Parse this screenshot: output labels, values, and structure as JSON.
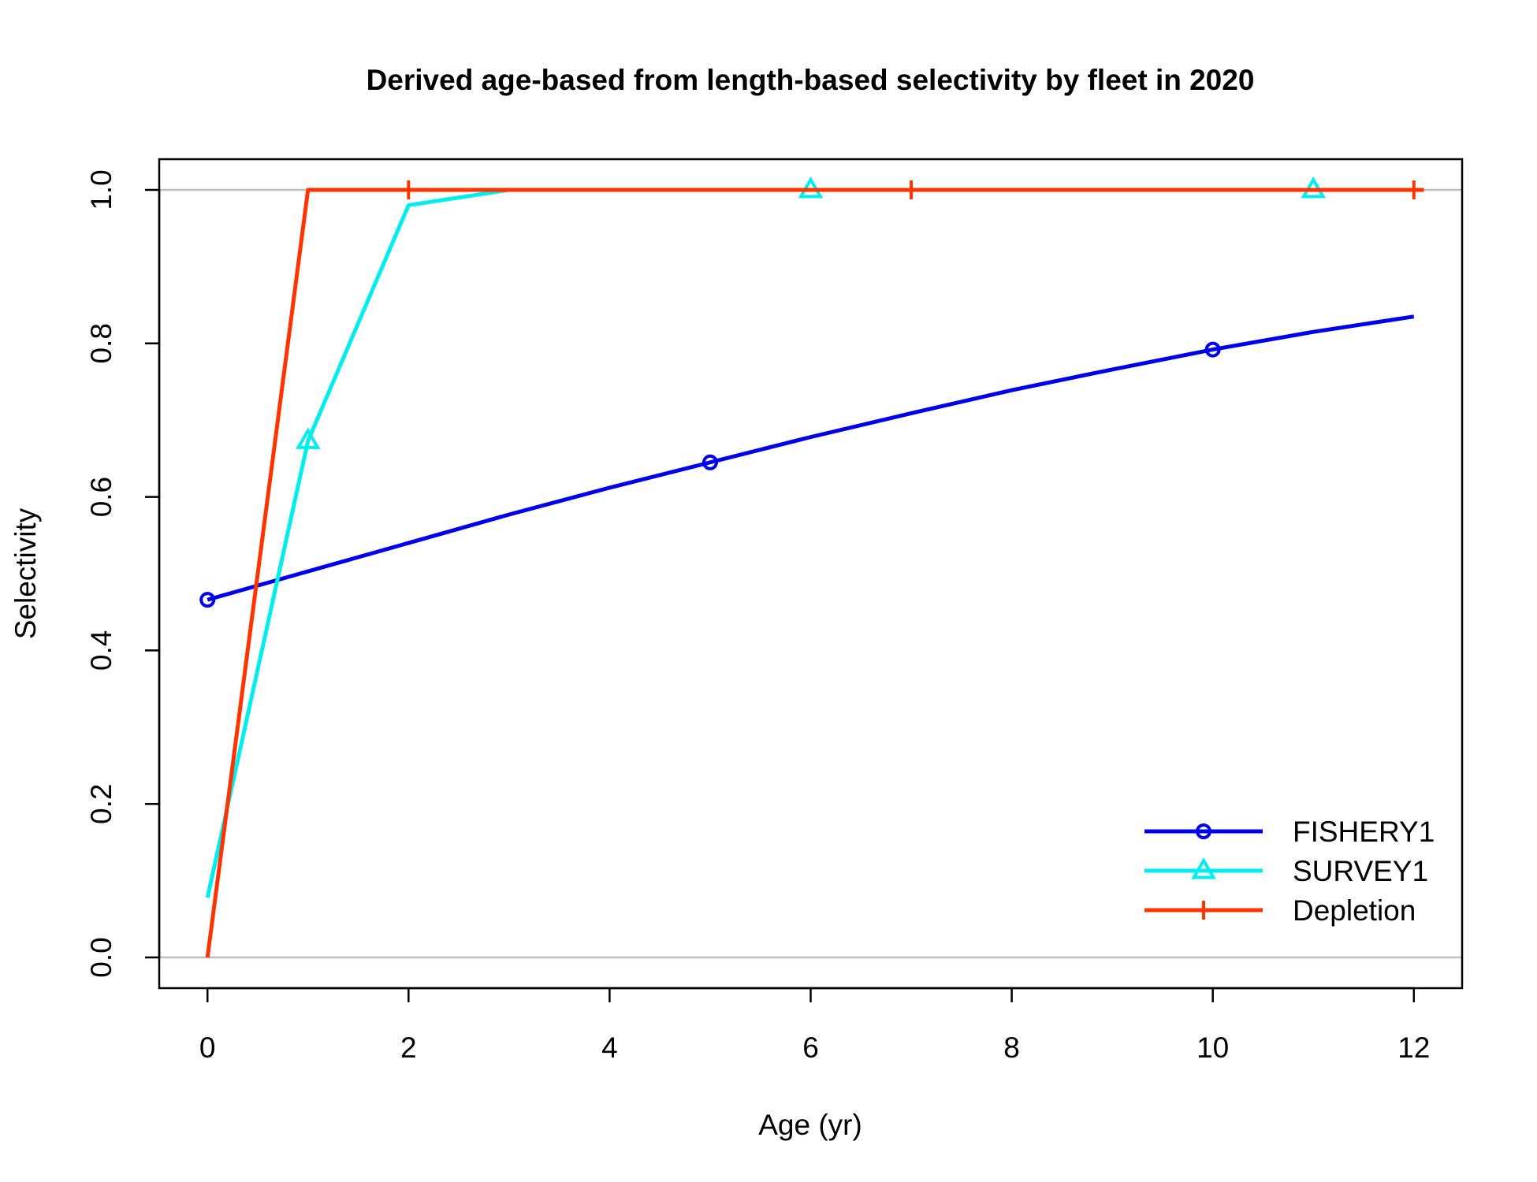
{
  "chart_data": {
    "type": "line",
    "title": "Derived age-based from length-based selectivity by fleet in 2020",
    "xlabel": "Age (yr)",
    "ylabel": "Selectivity",
    "xlim": [
      -0.48,
      12.48
    ],
    "ylim": [
      -0.04,
      1.04
    ],
    "xticks": [
      0,
      2,
      4,
      6,
      8,
      10,
      12
    ],
    "yticks": [
      0.0,
      0.2,
      0.4,
      0.6,
      0.8,
      1.0
    ],
    "xtick_labels": [
      "0",
      "2",
      "4",
      "6",
      "8",
      "10",
      "12"
    ],
    "ytick_labels": [
      "0.0",
      "0.2",
      "0.4",
      "0.6",
      "0.8",
      "1.0"
    ],
    "reference_lines": [
      0,
      1
    ],
    "grid": false,
    "legend_position": "bottom-right",
    "series": [
      {
        "name": "FISHERY1",
        "color": "#0000ee",
        "marker": "circle",
        "marker_x": [
          0,
          5,
          10
        ],
        "x": [
          0,
          1,
          2,
          3,
          4,
          5,
          6,
          7,
          8,
          9,
          10,
          11,
          12
        ],
        "y": [
          0.466,
          0.503,
          0.54,
          0.577,
          0.612,
          0.645,
          0.678,
          0.709,
          0.739,
          0.766,
          0.792,
          0.815,
          0.835
        ]
      },
      {
        "name": "SURVEY1",
        "color": "#00eeee",
        "marker": "triangle",
        "marker_x": [
          1,
          6,
          11
        ],
        "x": [
          0,
          1,
          2,
          3,
          4,
          5,
          6,
          7,
          8,
          9,
          10,
          11,
          12
        ],
        "y": [
          0.078,
          0.673,
          0.98,
          1.0,
          1.0,
          1.0,
          1.0,
          1.0,
          1.0,
          1.0,
          1.0,
          1.0,
          1.0
        ]
      },
      {
        "name": "Depletion",
        "color": "#ff3300",
        "marker": "plus",
        "marker_x": [
          2,
          7,
          12
        ],
        "x": [
          0,
          1,
          2,
          3,
          4,
          5,
          6,
          7,
          8,
          9,
          10,
          11,
          12,
          12.1
        ],
        "y": [
          0.0,
          1.0,
          1.0,
          1.0,
          1.0,
          1.0,
          1.0,
          1.0,
          1.0,
          1.0,
          1.0,
          1.0,
          1.0,
          1.0
        ]
      }
    ]
  }
}
